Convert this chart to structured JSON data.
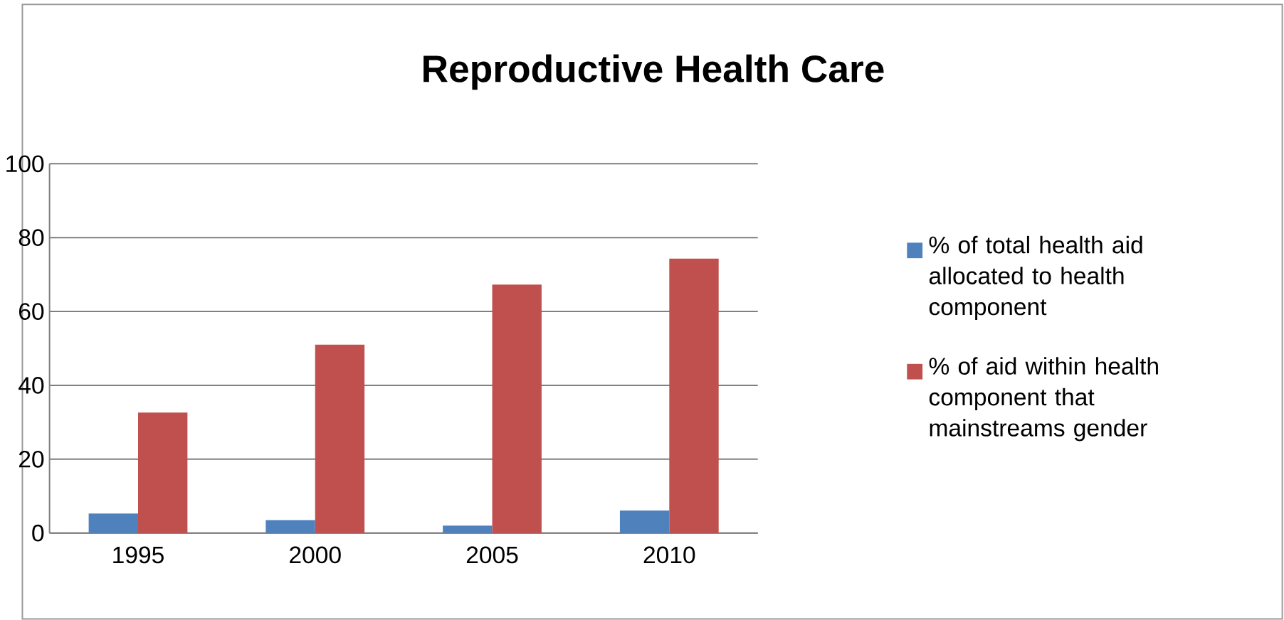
{
  "chart_data": {
    "type": "bar",
    "title": "Reproductive Health Care",
    "categories": [
      "1995",
      "2000",
      "2005",
      "2010"
    ],
    "series": [
      {
        "name": "% of total health aid allocated to health component",
        "color": "#4f81bd",
        "values": [
          5.3,
          3.5,
          2.0,
          6.1
        ]
      },
      {
        "name": "% of aid within health component that mainstreams gender",
        "color": "#c0504d",
        "values": [
          32.6,
          51.0,
          67.3,
          74.3
        ]
      }
    ],
    "ylim": [
      0,
      100
    ],
    "yticks": [
      0,
      20,
      40,
      60,
      80,
      100
    ],
    "grid": "y",
    "legend": "right"
  }
}
